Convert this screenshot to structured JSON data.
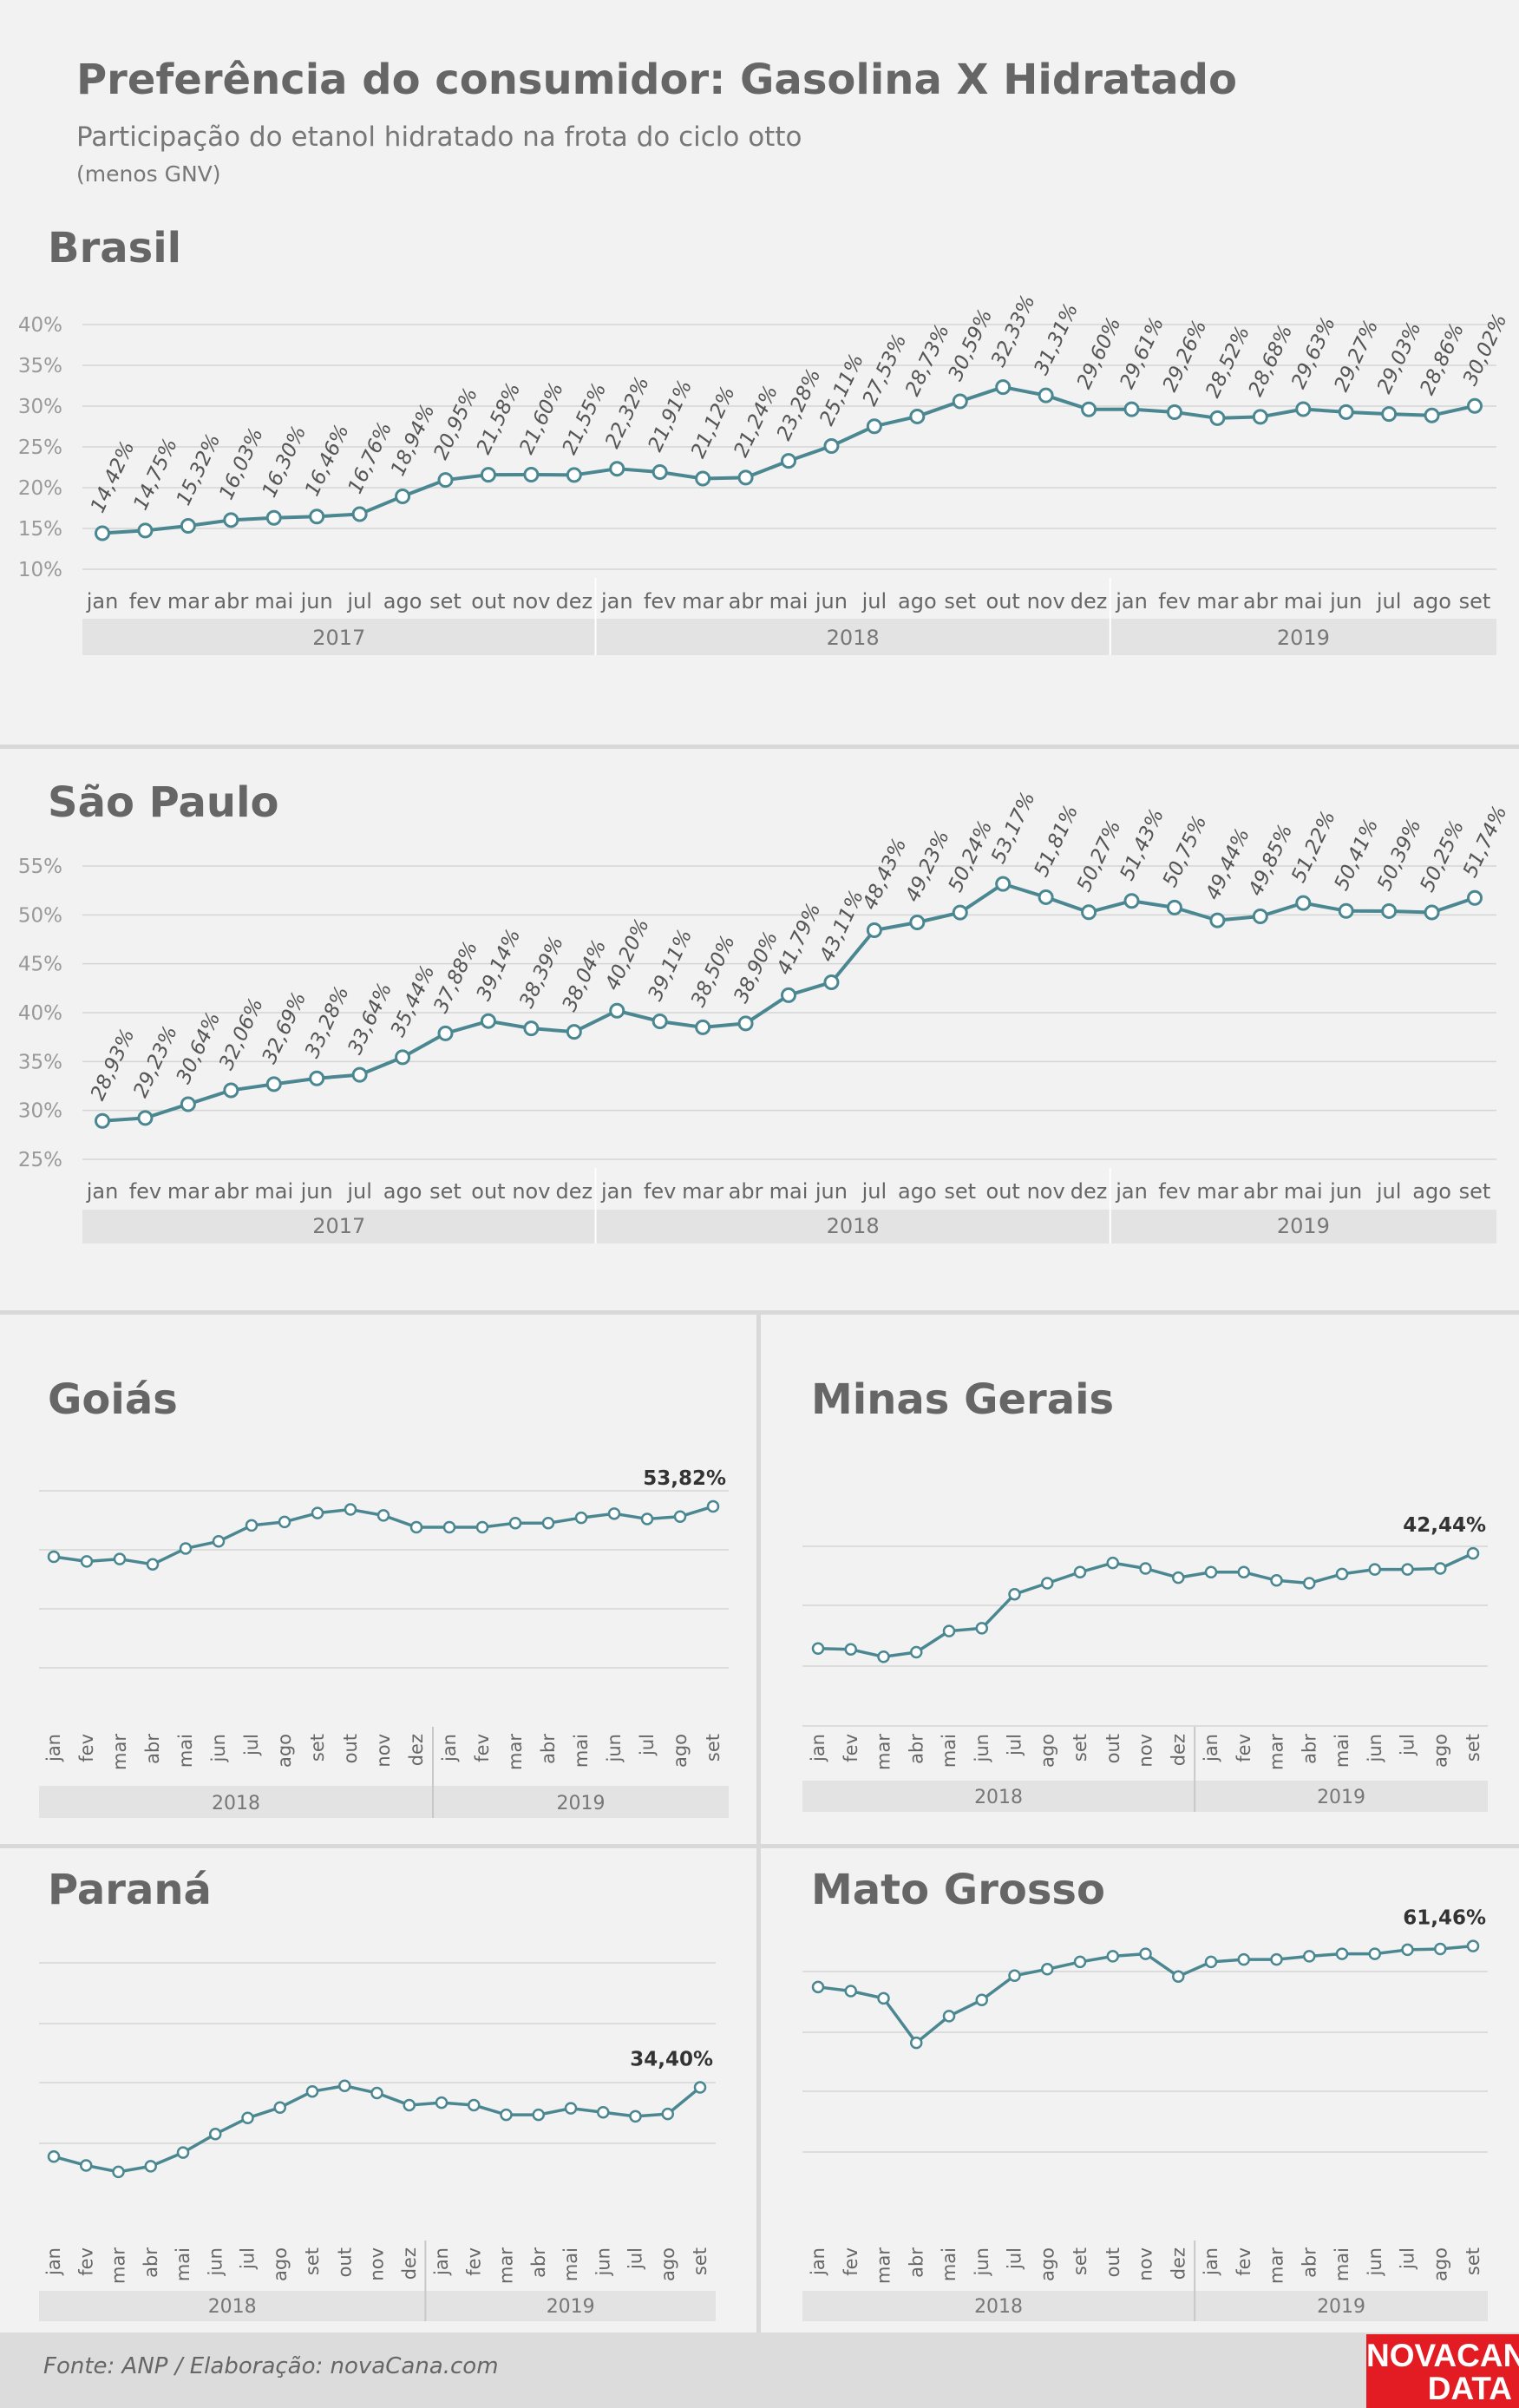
{
  "header": {
    "title": "Preferência do consumidor: Gasolina X Hidratado",
    "subtitle": "Participação do etanol hidratado na frota do ciclo otto",
    "subtitle2": "(menos GNV)"
  },
  "footer": {
    "source": "Fonte: ANP  / Elaboração: novaCana.com",
    "logo_line1": "NOVACANA",
    "logo_line2": "DATA"
  },
  "colors": {
    "line": "#4a8791",
    "marker_fill": "#ffffff",
    "grid": "#d5d5d5",
    "year_band": "#e3e3e3",
    "logo": "#e31b23"
  },
  "chart_data": [
    {
      "id": "brasil",
      "title": "Brasil",
      "type": "line",
      "x": [
        "jan",
        "fev",
        "mar",
        "abr",
        "mai",
        "jun",
        "jul",
        "ago",
        "set",
        "out",
        "nov",
        "dez",
        "jan",
        "fev",
        "mar",
        "abr",
        "mai",
        "jun",
        "jul",
        "ago",
        "set",
        "out",
        "nov",
        "dez",
        "jan",
        "fev",
        "mar",
        "abr",
        "mai",
        "jun",
        "jul",
        "ago",
        "set"
      ],
      "years": [
        {
          "label": "2017",
          "months": 12
        },
        {
          "label": "2018",
          "months": 12
        },
        {
          "label": "2019",
          "months": 9
        }
      ],
      "values": [
        14.42,
        14.75,
        15.32,
        16.03,
        16.3,
        16.46,
        16.76,
        18.94,
        20.95,
        21.58,
        21.6,
        21.55,
        22.32,
        21.91,
        21.12,
        21.24,
        23.28,
        25.11,
        27.53,
        28.73,
        30.59,
        32.33,
        31.31,
        29.6,
        29.61,
        29.26,
        28.52,
        28.68,
        29.63,
        29.27,
        29.03,
        28.86,
        30.02
      ],
      "data_labels": [
        "14,42%",
        "14,75%",
        "15,32%",
        "16,03%",
        "16,30%",
        "16,46%",
        "16,76%",
        "18,94%",
        "20,95%",
        "21,58%",
        "21,60%",
        "21,55%",
        "22,32%",
        "21,91%",
        "21,12%",
        "21,24%",
        "23,28%",
        "25,11%",
        "27,53%",
        "28,73%",
        "30,59%",
        "32,33%",
        "31,31%",
        "29,60%",
        "29,61%",
        "29,26%",
        "28,52%",
        "28,68%",
        "29,63%",
        "29,27%",
        "29,03%",
        "28,86%",
        "30,02%"
      ],
      "yticks": [
        "10%",
        "15%",
        "20%",
        "25%",
        "30%",
        "35%",
        "40%"
      ],
      "ylim": [
        10,
        40
      ],
      "grid": true
    },
    {
      "id": "saopaulo",
      "title": "São Paulo",
      "type": "line",
      "x": [
        "jan",
        "fev",
        "mar",
        "abr",
        "mai",
        "jun",
        "jul",
        "ago",
        "set",
        "out",
        "nov",
        "dez",
        "jan",
        "fev",
        "mar",
        "abr",
        "mai",
        "jun",
        "jul",
        "ago",
        "set",
        "out",
        "nov",
        "dez",
        "jan",
        "fev",
        "mar",
        "abr",
        "mai",
        "jun",
        "jul",
        "ago",
        "set"
      ],
      "years": [
        {
          "label": "2017",
          "months": 12
        },
        {
          "label": "2018",
          "months": 12
        },
        {
          "label": "2019",
          "months": 9
        }
      ],
      "values": [
        28.93,
        29.23,
        30.64,
        32.06,
        32.69,
        33.28,
        33.64,
        35.44,
        37.88,
        39.14,
        38.39,
        38.04,
        40.2,
        39.11,
        38.5,
        38.9,
        41.79,
        43.11,
        48.43,
        49.23,
        50.24,
        53.17,
        51.81,
        50.27,
        51.43,
        50.75,
        49.44,
        49.85,
        51.22,
        50.41,
        50.39,
        50.25,
        51.74
      ],
      "data_labels": [
        "28,93%",
        "29,23%",
        "30,64%",
        "32,06%",
        "32,69%",
        "33,28%",
        "33,64%",
        "35,44%",
        "37,88%",
        "39,14%",
        "38,39%",
        "38,04%",
        "40,20%",
        "39,11%",
        "38,50%",
        "38,90%",
        "41,79%",
        "43,11%",
        "48,43%",
        "49,23%",
        "50,24%",
        "53,17%",
        "51,81%",
        "50,27%",
        "51,43%",
        "50,75%",
        "49,44%",
        "49,85%",
        "51,22%",
        "50,41%",
        "50,39%",
        "50,25%",
        "51,74%"
      ],
      "yticks": [
        "25%",
        "30%",
        "35%",
        "40%",
        "45%",
        "50%",
        "55%"
      ],
      "ylim": [
        25,
        55
      ],
      "grid": true
    },
    {
      "id": "goias",
      "title": "Goiás",
      "type": "line",
      "x": [
        "jan",
        "fev",
        "mar",
        "abr",
        "mai",
        "jun",
        "jul",
        "ago",
        "set",
        "out",
        "nov",
        "dez",
        "jan",
        "fev",
        "mar",
        "abr",
        "mai",
        "jun",
        "jul",
        "ago",
        "set"
      ],
      "years": [
        {
          "label": "2018",
          "months": 12
        },
        {
          "label": "2019",
          "months": 9
        }
      ],
      "values": [
        45.3,
        44.5,
        44.9,
        44.0,
        46.7,
        47.9,
        50.6,
        51.2,
        52.7,
        53.3,
        52.3,
        50.3,
        50.3,
        50.3,
        51.0,
        51.0,
        51.9,
        52.6,
        51.7,
        52.1,
        53.82
      ],
      "last_label": "53,82%",
      "ylim": [
        30,
        60
      ],
      "grid": true
    },
    {
      "id": "minas",
      "title": "Minas Gerais",
      "type": "line",
      "x": [
        "jan",
        "fev",
        "mar",
        "abr",
        "mai",
        "jun",
        "jul",
        "ago",
        "set",
        "out",
        "nov",
        "dez",
        "jan",
        "fev",
        "mar",
        "abr",
        "mai",
        "jun",
        "jul",
        "ago",
        "set"
      ],
      "years": [
        {
          "label": "2018",
          "months": 12
        },
        {
          "label": "2019",
          "months": 9
        }
      ],
      "values": [
        32.1,
        32.0,
        31.2,
        31.7,
        34.0,
        34.3,
        38.0,
        39.2,
        40.4,
        41.4,
        40.8,
        39.8,
        40.4,
        40.4,
        39.5,
        39.2,
        40.2,
        40.7,
        40.7,
        40.8,
        42.44
      ],
      "last_label": "42,44%",
      "ylim": [
        25,
        45
      ],
      "grid": true
    },
    {
      "id": "parana",
      "title": "Paraná",
      "type": "line",
      "x": [
        "jan",
        "fev",
        "mar",
        "abr",
        "mai",
        "jun",
        "jul",
        "ago",
        "set",
        "out",
        "nov",
        "dez",
        "jan",
        "fev",
        "mar",
        "abr",
        "mai",
        "jun",
        "jul",
        "ago",
        "set"
      ],
      "years": [
        {
          "label": "2018",
          "months": 12
        },
        {
          "label": "2019",
          "months": 9
        }
      ],
      "values": [
        25.8,
        24.7,
        23.9,
        24.6,
        26.3,
        28.6,
        30.6,
        31.9,
        33.9,
        34.6,
        33.7,
        32.2,
        32.5,
        32.2,
        31.0,
        31.0,
        31.8,
        31.3,
        30.8,
        31.1,
        34.4
      ],
      "last_label": "34,40%",
      "ylim": [
        20,
        50
      ],
      "grid": true
    },
    {
      "id": "matogrosso",
      "title": "Mato Grosso",
      "type": "line",
      "x": [
        "jan",
        "fev",
        "mar",
        "abr",
        "mai",
        "jun",
        "jul",
        "ago",
        "set",
        "out",
        "nov",
        "dez",
        "jan",
        "fev",
        "mar",
        "abr",
        "mai",
        "jun",
        "jul",
        "ago",
        "set"
      ],
      "years": [
        {
          "label": "2018",
          "months": 12
        },
        {
          "label": "2019",
          "months": 9
        }
      ],
      "values": [
        56.4,
        55.9,
        55.0,
        49.5,
        52.8,
        54.8,
        57.8,
        58.6,
        59.5,
        60.2,
        60.5,
        57.7,
        59.5,
        59.8,
        59.8,
        60.2,
        60.5,
        60.5,
        61.0,
        61.1,
        61.46
      ],
      "last_label": "61,46%",
      "ylim": [
        30,
        70
      ],
      "grid": true
    }
  ]
}
